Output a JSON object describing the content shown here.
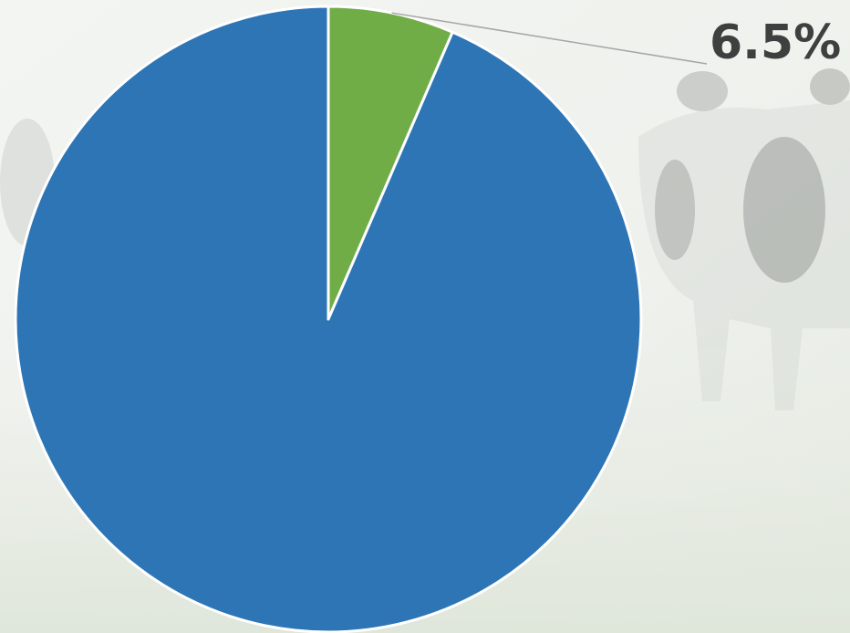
{
  "chart_data": {
    "type": "pie",
    "values": [
      6.5,
      93.5
    ],
    "value_labels": [
      "6.5%",
      null
    ],
    "colors": [
      "#70ad47",
      "#2e75b6"
    ]
  }
}
